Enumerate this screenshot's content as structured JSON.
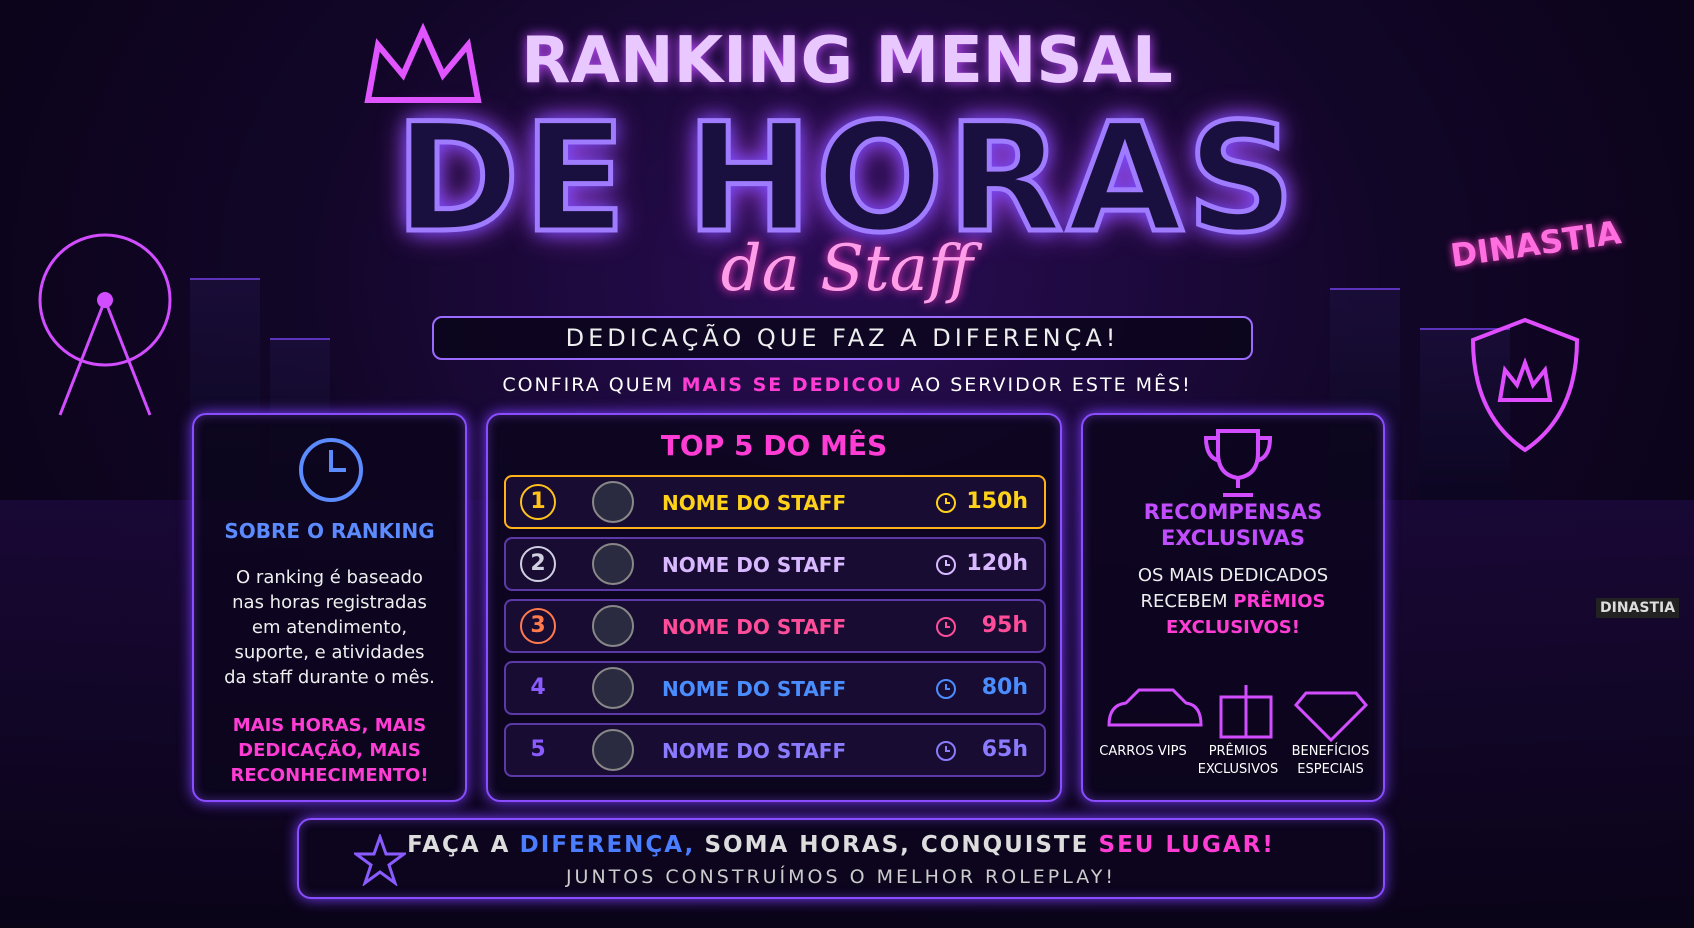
{
  "header": {
    "title_line1": "RANKING MENSAL",
    "title_line2": "DE HORAS",
    "title_script": "da Staff",
    "tagline": "DEDICAÇÃO QUE FAZ A DIFERENÇA!",
    "subtitle": [
      "CONFIRA QUEM",
      "MAIS SE DEDICOU",
      "AO SERVIDOR ESTE MÊS!"
    ],
    "sign": "DINASTIA",
    "plate": "DINASTIA"
  },
  "about": {
    "title": "SOBRE O RANKING",
    "text": "O ranking é baseado nas horas registradas em atendimento, suporte, e atividades da staff durante o mês.",
    "slogan": "MAIS HORAS, MAIS DEDICAÇÃO, MAIS RECONHECIMENTO!"
  },
  "top": {
    "title": "TOP 5 DO MÊS",
    "rows": [
      {
        "rank": "1",
        "name": "NOME DO STAFF",
        "hours": "150h"
      },
      {
        "rank": "2",
        "name": "NOME DO STAFF",
        "hours": "120h"
      },
      {
        "rank": "3",
        "name": "NOME DO STAFF",
        "hours": "95h"
      },
      {
        "rank": "4",
        "name": "NOME DO STAFF",
        "hours": "80h"
      },
      {
        "rank": "5",
        "name": "NOME DO STAFF",
        "hours": "65h"
      }
    ]
  },
  "rewards": {
    "title": "RECOMPENSAS EXCLUSIVAS",
    "text": [
      "OS MAIS DEDICADOS RECEBEM",
      "PRÊMIOS EXCLUSIVOS!"
    ],
    "items": [
      "CARROS VIPS",
      "PRÊMIOS EXCLUSIVOS",
      "BENEFÍCIOS ESPECIAIS"
    ]
  },
  "footer": {
    "line1": [
      "FAÇA A",
      "DIFERENÇA,",
      "SOMA HORAS, CONQUISTE",
      "SEU LUGAR!"
    ],
    "line2": "JUNTOS CONSTRUÍMOS O MELHOR ROLEPLAY!"
  }
}
